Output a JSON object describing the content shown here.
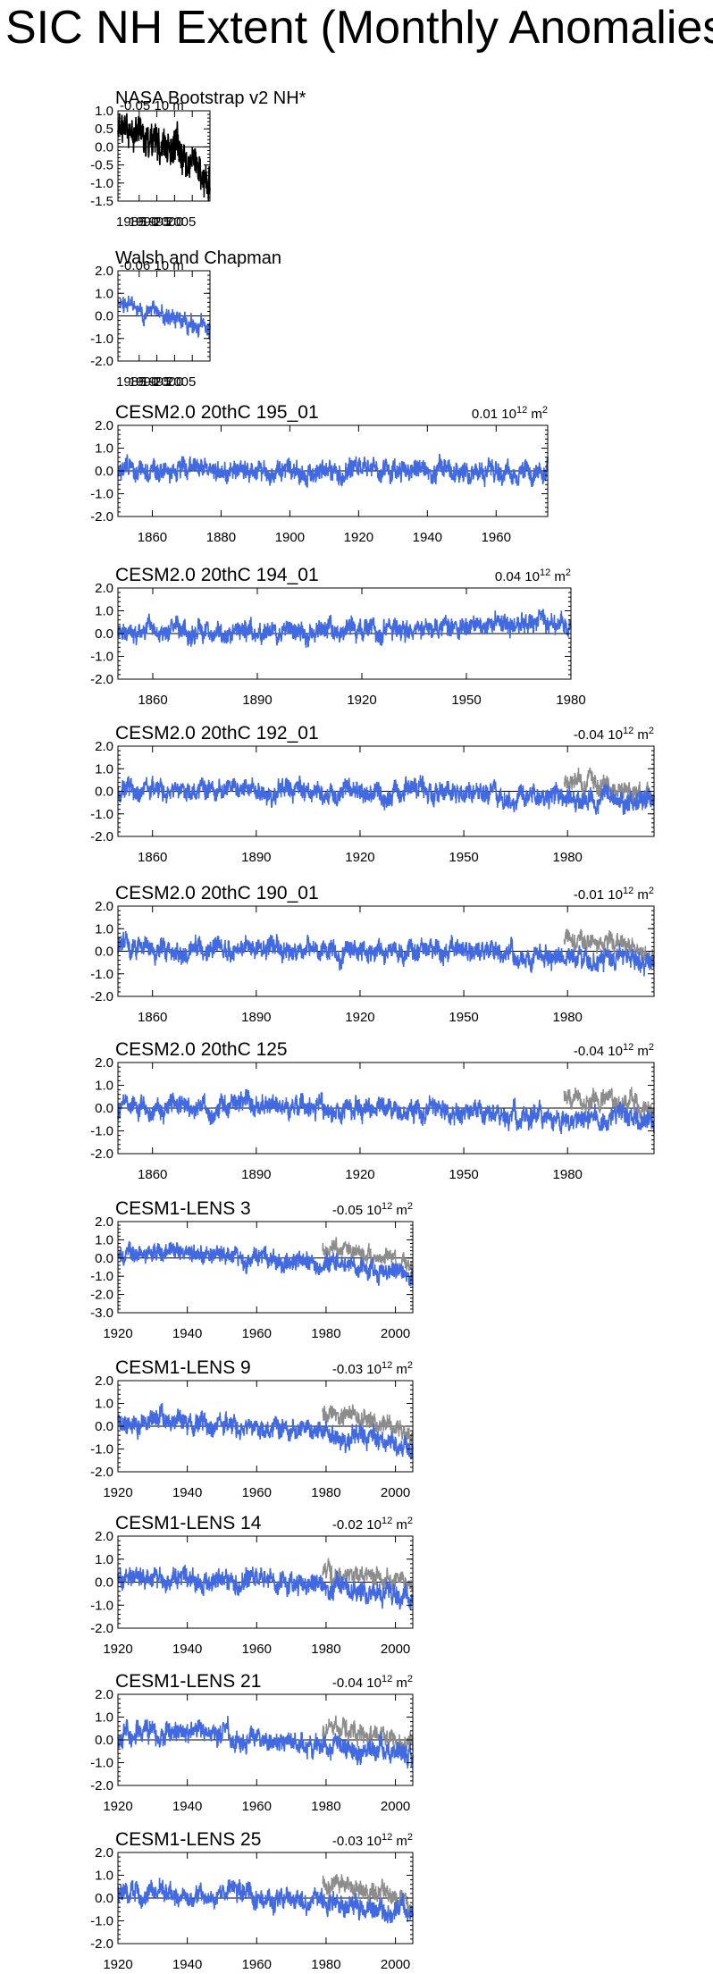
{
  "page": {
    "title": "SIC NH Extent (Monthly Anomalies)"
  },
  "unit": {
    "prefix": "10",
    "exp": "12",
    "m": "m",
    "m_exp": "2"
  },
  "colors": {
    "model": "#4169e1",
    "obs": "#8c8c8c",
    "obs_dark": "#000000",
    "axis": "#000000"
  },
  "chart_data": [
    {
      "type": "line",
      "title": "NASA Bootstrap v2 NH*",
      "trend": "-0.05",
      "trend_suffix": "10 m",
      "style": "obs",
      "xlim": [
        1979,
        2005
      ],
      "ylim": [
        -1.5,
        1.0
      ],
      "xticks": [
        1985,
        1990,
        1995,
        2000,
        2005
      ],
      "xtick_labels": [
        "1985",
        "1990",
        "1995",
        "2000",
        "2005"
      ],
      "yticks": [
        1.0,
        0.5,
        0.0,
        -0.5,
        -1.0,
        -1.5
      ],
      "ytick_labels": [
        "1.0",
        "0.5",
        "0.0",
        "-0.5",
        "-1.0",
        "-1.5"
      ],
      "series": [
        {
          "x0": 1979,
          "x1": 2005,
          "mean": 0.5,
          "trend_end": -1.0,
          "amp": 0.4,
          "seed": 11
        }
      ]
    },
    {
      "type": "line",
      "title": "Walsh and Chapman",
      "trend": "-0.06",
      "trend_suffix": "10 m",
      "style": "blue",
      "xlim": [
        1979,
        2005
      ],
      "ylim": [
        -2.0,
        2.0
      ],
      "xticks": [
        1985,
        1990,
        1995,
        2000,
        2005
      ],
      "xtick_labels": [
        "1985",
        "1990",
        "1995",
        "2000",
        "2005"
      ],
      "yticks": [
        2.0,
        1.0,
        0.0,
        -1.0,
        -2.0
      ],
      "ytick_labels": [
        "2.0",
        "1.0",
        "0.0",
        "-1.0",
        "-2.0"
      ],
      "series": [
        {
          "x0": 1979,
          "x1": 2005,
          "mean": 0.4,
          "trend_end": -0.6,
          "amp": 0.3,
          "seed": 23
        }
      ]
    },
    {
      "type": "line",
      "title": "CESM2.0 20thC 195_01",
      "trend": "0.01",
      "style": "model",
      "xlim": [
        1850,
        1975
      ],
      "ylim": [
        -2.0,
        2.0
      ],
      "xticks": [
        1860,
        1880,
        1900,
        1920,
        1940,
        1960
      ],
      "xtick_labels": [
        "1860",
        "1880",
        "1900",
        "1920",
        "1940",
        "1960"
      ],
      "yticks": [
        2.0,
        1.0,
        0.0,
        -1.0,
        -2.0
      ],
      "ytick_labels": [
        "2.0",
        "1.0",
        "0.0",
        "-1.0",
        "-2.0"
      ],
      "series": [
        {
          "x0": 1850,
          "x1": 1975,
          "mean": 0.0,
          "trend_end": 0.0,
          "amp": 0.35,
          "seed": 31
        }
      ]
    },
    {
      "type": "line",
      "title": "CESM2.0 20thC 194_01",
      "trend": "0.04",
      "style": "model",
      "xlim": [
        1850,
        1980
      ],
      "ylim": [
        -2.0,
        2.0
      ],
      "xticks": [
        1860,
        1890,
        1920,
        1950,
        1980
      ],
      "xtick_labels": [
        "1860",
        "1890",
        "1920",
        "1950",
        "1980"
      ],
      "yticks": [
        2.0,
        1.0,
        0.0,
        -1.0,
        -2.0
      ],
      "ytick_labels": [
        "2.0",
        "1.0",
        "0.0",
        "-1.0",
        "-2.0"
      ],
      "series": [
        {
          "x0": 1850,
          "x1": 1980,
          "mean": 0.0,
          "trend_end": 0.5,
          "amp": 0.35,
          "seed": 41
        }
      ]
    },
    {
      "type": "line",
      "title": "CESM2.0 20thC 192_01",
      "trend": "-0.04",
      "style": "model",
      "xlim": [
        1850,
        2005
      ],
      "ylim": [
        -2.0,
        2.0
      ],
      "xticks": [
        1860,
        1890,
        1920,
        1950,
        1980
      ],
      "xtick_labels": [
        "1860",
        "1890",
        "1920",
        "1950",
        "1980"
      ],
      "yticks": [
        2.0,
        1.0,
        0.0,
        -1.0,
        -2.0
      ],
      "ytick_labels": [
        "2.0",
        "1.0",
        "0.0",
        "-1.0",
        "-2.0"
      ],
      "series": [
        {
          "x0": 1850,
          "x1": 2005,
          "mean": 0.1,
          "trend_end": -0.5,
          "amp": 0.35,
          "seed": 53
        }
      ],
      "obs": {
        "x0": 1979,
        "x1": 2005,
        "mean": 0.5,
        "trend_end": -0.3,
        "amp": 0.3,
        "seed": 7
      }
    },
    {
      "type": "line",
      "title": "CESM2.0 20thC 190_01",
      "trend": "-0.01",
      "style": "model",
      "xlim": [
        1850,
        2005
      ],
      "ylim": [
        -2.0,
        2.0
      ],
      "xticks": [
        1860,
        1890,
        1920,
        1950,
        1980
      ],
      "xtick_labels": [
        "1860",
        "1890",
        "1920",
        "1950",
        "1980"
      ],
      "yticks": [
        2.0,
        1.0,
        0.0,
        -1.0,
        -2.0
      ],
      "ytick_labels": [
        "2.0",
        "1.0",
        "0.0",
        "-1.0",
        "-2.0"
      ],
      "series": [
        {
          "x0": 1850,
          "x1": 2005,
          "mean": 0.1,
          "trend_end": -0.4,
          "amp": 0.35,
          "seed": 61
        }
      ],
      "obs": {
        "x0": 1979,
        "x1": 2005,
        "mean": 0.5,
        "trend_end": -0.3,
        "amp": 0.3,
        "seed": 9
      }
    },
    {
      "type": "line",
      "title": "CESM2.0 20thC 125",
      "trend": "-0.04",
      "style": "model",
      "xlim": [
        1850,
        2005
      ],
      "ylim": [
        -2.0,
        2.0
      ],
      "xticks": [
        1860,
        1890,
        1920,
        1950,
        1980
      ],
      "xtick_labels": [
        "1860",
        "1890",
        "1920",
        "1950",
        "1980"
      ],
      "yticks": [
        2.0,
        1.0,
        0.0,
        -1.0,
        -2.0
      ],
      "ytick_labels": [
        "2.0",
        "1.0",
        "0.0",
        "-1.0",
        "-2.0"
      ],
      "series": [
        {
          "x0": 1850,
          "x1": 2005,
          "mean": 0.1,
          "trend_end": -0.6,
          "amp": 0.35,
          "seed": 71
        }
      ],
      "obs": {
        "x0": 1979,
        "x1": 2005,
        "mean": 0.5,
        "trend_end": -0.3,
        "amp": 0.3,
        "seed": 13
      }
    },
    {
      "type": "line",
      "title": "CESM1-LENS 3",
      "trend": "-0.05",
      "style": "model",
      "xlim": [
        1920,
        2005
      ],
      "ylim": [
        -3.0,
        2.0
      ],
      "xticks": [
        1920,
        1940,
        1960,
        1980,
        2000
      ],
      "xtick_labels": [
        "1920",
        "1940",
        "1960",
        "1980",
        "2000"
      ],
      "yticks": [
        2.0,
        1.0,
        0.0,
        -1.0,
        -2.0,
        -3.0
      ],
      "ytick_labels": [
        "2.0",
        "1.0",
        "0.0",
        "-1.0",
        "-2.0",
        "-3.0"
      ],
      "series": [
        {
          "x0": 1920,
          "x1": 2005,
          "mean": 0.3,
          "trend_end": -1.0,
          "amp": 0.4,
          "seed": 83
        }
      ],
      "obs": {
        "x0": 1979,
        "x1": 2005,
        "mean": 0.5,
        "trend_end": -0.4,
        "amp": 0.3,
        "seed": 17
      }
    },
    {
      "type": "line",
      "title": "CESM1-LENS 9",
      "trend": "-0.03",
      "style": "model",
      "xlim": [
        1920,
        2005
      ],
      "ylim": [
        -2.0,
        2.0
      ],
      "xticks": [
        1920,
        1940,
        1960,
        1980,
        2000
      ],
      "xtick_labels": [
        "1920",
        "1940",
        "1960",
        "1980",
        "2000"
      ],
      "yticks": [
        2.0,
        1.0,
        0.0,
        -1.0,
        -2.0
      ],
      "ytick_labels": [
        "2.0",
        "1.0",
        "0.0",
        "-1.0",
        "-2.0"
      ],
      "series": [
        {
          "x0": 1920,
          "x1": 2005,
          "mean": 0.2,
          "trend_end": -0.8,
          "amp": 0.35,
          "seed": 97
        }
      ],
      "obs": {
        "x0": 1979,
        "x1": 2005,
        "mean": 0.5,
        "trend_end": -0.3,
        "amp": 0.3,
        "seed": 19
      }
    },
    {
      "type": "line",
      "title": "CESM1-LENS 14",
      "trend": "-0.02",
      "style": "model",
      "xlim": [
        1920,
        2005
      ],
      "ylim": [
        -2.0,
        2.0
      ],
      "xticks": [
        1920,
        1940,
        1960,
        1980,
        2000
      ],
      "xtick_labels": [
        "1920",
        "1940",
        "1960",
        "1980",
        "2000"
      ],
      "yticks": [
        2.0,
        1.0,
        0.0,
        -1.0,
        -2.0
      ],
      "ytick_labels": [
        "2.0",
        "1.0",
        "0.0",
        "-1.0",
        "-2.0"
      ],
      "series": [
        {
          "x0": 1920,
          "x1": 2005,
          "mean": 0.2,
          "trend_end": -0.6,
          "amp": 0.35,
          "seed": 101
        }
      ],
      "obs": {
        "x0": 1979,
        "x1": 2005,
        "mean": 0.5,
        "trend_end": -0.3,
        "amp": 0.3,
        "seed": 21
      }
    },
    {
      "type": "line",
      "title": "CESM1-LENS 21",
      "trend": "-0.04",
      "style": "model",
      "xlim": [
        1920,
        2005
      ],
      "ylim": [
        -2.0,
        2.0
      ],
      "xticks": [
        1920,
        1940,
        1960,
        1980,
        2000
      ],
      "xtick_labels": [
        "1920",
        "1940",
        "1960",
        "1980",
        "2000"
      ],
      "yticks": [
        2.0,
        1.0,
        0.0,
        -1.0,
        -2.0
      ],
      "ytick_labels": [
        "2.0",
        "1.0",
        "0.0",
        "-1.0",
        "-2.0"
      ],
      "series": [
        {
          "x0": 1920,
          "x1": 2005,
          "mean": 0.2,
          "trend_end": -0.7,
          "amp": 0.35,
          "seed": 113
        }
      ],
      "obs": {
        "x0": 1979,
        "x1": 2005,
        "mean": 0.5,
        "trend_end": -0.3,
        "amp": 0.3,
        "seed": 27
      }
    },
    {
      "type": "line",
      "title": "CESM1-LENS 25",
      "trend": "-0.03",
      "style": "model",
      "xlim": [
        1920,
        2005
      ],
      "ylim": [
        -2.0,
        2.0
      ],
      "xticks": [
        1920,
        1940,
        1960,
        1980,
        2000
      ],
      "xtick_labels": [
        "1920",
        "1940",
        "1960",
        "1980",
        "2000"
      ],
      "yticks": [
        2.0,
        1.0,
        0.0,
        -1.0,
        -2.0
      ],
      "ytick_labels": [
        "2.0",
        "1.0",
        "0.0",
        "-1.0",
        "-2.0"
      ],
      "series": [
        {
          "x0": 1920,
          "x1": 2005,
          "mean": 0.2,
          "trend_end": -0.6,
          "amp": 0.35,
          "seed": 127
        }
      ],
      "obs": {
        "x0": 1979,
        "x1": 2005,
        "mean": 0.5,
        "trend_end": -0.3,
        "amp": 0.3,
        "seed": 29
      }
    }
  ]
}
